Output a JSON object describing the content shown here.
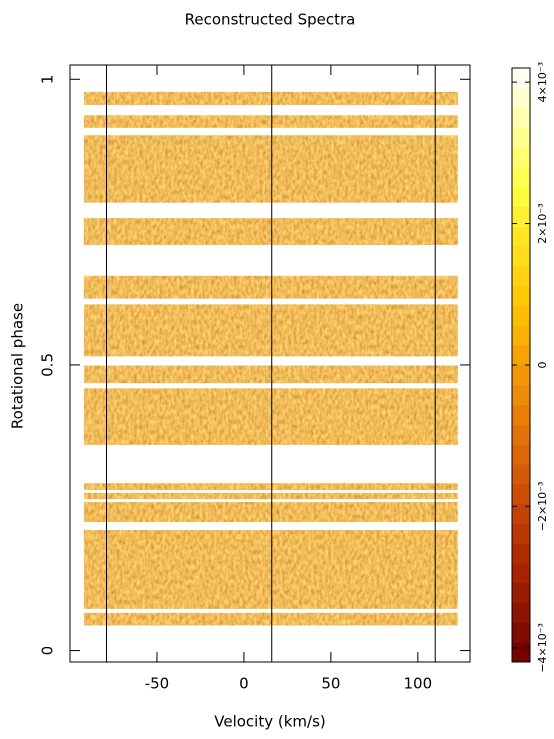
{
  "chart_data": {
    "type": "heatmap",
    "title": "Reconstructed Spectra",
    "x_label": "Velocity (km/s)",
    "y_label": "Rotational phase",
    "xlim": [
      -100,
      130
    ],
    "xticks": [
      -50,
      0,
      50,
      100
    ],
    "ylim": [
      -0.02,
      1.025
    ],
    "yticks": [
      0,
      0.5,
      1
    ],
    "velocity_range": [
      -92,
      123
    ],
    "bands": [
      [
        0.955,
        0.978
      ],
      [
        0.915,
        0.937
      ],
      [
        0.784,
        0.902
      ],
      [
        0.71,
        0.757
      ],
      [
        0.616,
        0.656
      ],
      [
        0.515,
        0.606
      ],
      [
        0.468,
        0.499
      ],
      [
        0.36,
        0.459
      ],
      [
        0.281,
        0.293
      ],
      [
        0.265,
        0.276
      ],
      [
        0.225,
        0.26
      ],
      [
        0.073,
        0.211
      ],
      [
        0.044,
        0.066
      ]
    ],
    "vlines": [
      -79,
      16,
      110
    ],
    "clim": [
      -0.0042,
      0.0042
    ],
    "cticks": [
      {
        "value": -0.004,
        "label": "−4×10⁻³"
      },
      {
        "value": -0.002,
        "label": "−2×10⁻³"
      },
      0,
      {
        "value": 0.002,
        "label": "2×10⁻³"
      },
      {
        "value": 0.004,
        "label": "4×10⁻³"
      }
    ],
    "colormap": [
      "#6e0000",
      "#b83000",
      "#e8780a",
      "#ffc400",
      "#ffff40",
      "#ffffff"
    ],
    "levels": 30
  }
}
